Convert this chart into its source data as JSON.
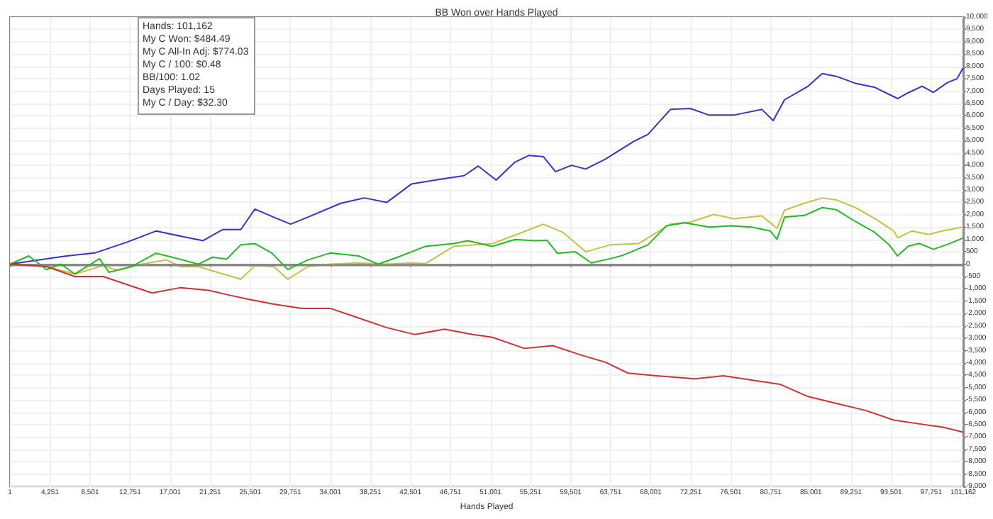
{
  "chart_data": {
    "type": "line",
    "title": "BB Won over Hands Played",
    "xlabel": "Hands Played",
    "annotations": [
      "Hands: 101,162",
      "My C Won: $484.49",
      "My C All-In Adj: $774.03",
      "My C / 100: $0.48",
      "BB/100: 1.02",
      "Days Played: 15",
      "My C / Day: $32.30"
    ],
    "xlim": [
      1,
      101162
    ],
    "xticks": [
      1,
      {
        "value": 4251,
        "label": "4,251"
      },
      {
        "value": 8501,
        "label": "8,501"
      },
      {
        "value": 12751,
        "label": "12,751"
      },
      {
        "value": 17001,
        "label": "17,001"
      },
      {
        "value": 21251,
        "label": "21,251"
      },
      {
        "value": 25501,
        "label": "25,501"
      },
      {
        "value": 29751,
        "label": "29,751"
      },
      {
        "value": 34001,
        "label": "34,001"
      },
      {
        "value": 38251,
        "label": "38,251"
      },
      {
        "value": 42501,
        "label": "42,501"
      },
      {
        "value": 46751,
        "label": "46,751"
      },
      {
        "value": 51001,
        "label": "51,001"
      },
      {
        "value": 55251,
        "label": "55,251"
      },
      {
        "value": 59501,
        "label": "59,501"
      },
      {
        "value": 63751,
        "label": "63,751"
      },
      {
        "value": 68001,
        "label": "68,001"
      },
      {
        "value": 72251,
        "label": "72,251"
      },
      {
        "value": 76501,
        "label": "76,501"
      },
      {
        "value": 80751,
        "label": "80,751"
      },
      {
        "value": 85001,
        "label": "85,001"
      },
      {
        "value": 89251,
        "label": "89,251"
      },
      {
        "value": 93501,
        "label": "93,501"
      },
      {
        "value": 97751,
        "label": "97,751"
      },
      {
        "value": 101162,
        "label": "101,162"
      }
    ],
    "ylim": [
      -9000,
      10000
    ],
    "yticks": [
      {
        "value": -9000,
        "label": "-9,000"
      },
      {
        "value": -8500,
        "label": "-8,500"
      },
      {
        "value": -8000,
        "label": "-8,000"
      },
      {
        "value": -7500,
        "label": "-7,500"
      },
      {
        "value": -7000,
        "label": "-7,000"
      },
      {
        "value": -6500,
        "label": "-6,500"
      },
      {
        "value": -6000,
        "label": "-6,000"
      },
      {
        "value": -5500,
        "label": "-5,500"
      },
      {
        "value": -5000,
        "label": "-5,000"
      },
      {
        "value": -4500,
        "label": "-4,500"
      },
      {
        "value": -4000,
        "label": "-4,000"
      },
      {
        "value": -3500,
        "label": "-3,500"
      },
      {
        "value": -3000,
        "label": "-3,000"
      },
      {
        "value": -2500,
        "label": "-2,500"
      },
      {
        "value": -2000,
        "label": "-2,000"
      },
      {
        "value": -1500,
        "label": "-1,500"
      },
      {
        "value": -1000,
        "label": "-1,000"
      },
      -500,
      0,
      500,
      {
        "value": 1000,
        "label": "1,000"
      },
      {
        "value": 1500,
        "label": "1,500"
      },
      {
        "value": 2000,
        "label": "2,000"
      },
      {
        "value": 2500,
        "label": "2,500"
      },
      {
        "value": 3000,
        "label": "3,000"
      },
      {
        "value": 3500,
        "label": "3,500"
      },
      {
        "value": 4000,
        "label": "4,000"
      },
      {
        "value": 4500,
        "label": "4,500"
      },
      {
        "value": 5000,
        "label": "5,000"
      },
      {
        "value": 5500,
        "label": "5,500"
      },
      {
        "value": 6000,
        "label": "6,000"
      },
      {
        "value": 6500,
        "label": "6,500"
      },
      {
        "value": 7000,
        "label": "7,000"
      },
      {
        "value": 7500,
        "label": "7,500"
      },
      {
        "value": 8000,
        "label": "8,000"
      },
      {
        "value": 8500,
        "label": "8,500"
      },
      {
        "value": 9000,
        "label": "9,000"
      },
      {
        "value": 9500,
        "label": "9,500"
      },
      {
        "value": 10000,
        "label": "10,000"
      }
    ],
    "grid": true,
    "marker": "none",
    "line_style": "solid",
    "ref_lines": [
      {
        "axis": "y",
        "value": 0,
        "color": "#888888"
      }
    ],
    "series": [
      {
        "color": "#3333cc",
        "x": [
          1,
          6000,
          9000,
          12500,
          15500,
          19000,
          20500,
          22600,
          24500,
          26000,
          28000,
          29800,
          31600,
          35100,
          37600,
          40000,
          42600,
          45100,
          48200,
          49700,
          51600,
          53600,
          55100,
          56600,
          57900,
          59600,
          61100,
          63200,
          66200,
          67700,
          70100,
          72200,
          74200,
          76800,
          79800,
          81000,
          82200,
          84700,
          86200,
          87700,
          89700,
          91800,
          94200,
          95300,
          96800,
          98000,
          99500,
          100500,
          101162
        ],
        "values": [
          0,
          330,
          450,
          900,
          1340,
          1060,
          950,
          1400,
          1400,
          2230,
          1900,
          1620,
          1900,
          2460,
          2680,
          2500,
          3240,
          3400,
          3580,
          3970,
          3400,
          4130,
          4400,
          4350,
          3740,
          4000,
          3850,
          4250,
          4970,
          5250,
          6260,
          6300,
          6030,
          6030,
          6260,
          5810,
          6650,
          7200,
          7710,
          7600,
          7320,
          7150,
          6700,
          6930,
          7200,
          6950,
          7350,
          7500,
          7950
        ]
      },
      {
        "color": "#c8c040",
        "x": [
          1,
          3900,
          6900,
          9900,
          11400,
          14000,
          16600,
          18100,
          20000,
          22000,
          24500,
          26000,
          28000,
          29500,
          31600,
          34000,
          37000,
          40000,
          42600,
          44100,
          47100,
          51200,
          53600,
          56600,
          58700,
          61100,
          63700,
          66700,
          70100,
          72200,
          74700,
          76800,
          79800,
          81400,
          82200,
          84300,
          86200,
          87700,
          89700,
          91800,
          93800,
          94200,
          95700,
          97500,
          99000,
          101162
        ],
        "values": [
          0,
          -100,
          -400,
          -60,
          -250,
          0,
          170,
          -100,
          -100,
          -330,
          -610,
          -60,
          -100,
          -610,
          -100,
          0,
          50,
          0,
          50,
          20,
          720,
          830,
          1170,
          1620,
          1280,
          500,
          780,
          830,
          1620,
          1700,
          2010,
          1840,
          1950,
          1450,
          2180,
          2460,
          2680,
          2600,
          2290,
          1840,
          1340,
          1060,
          1340,
          1200,
          1350,
          1500
        ]
      },
      {
        "color": "#22bb22",
        "x": [
          1,
          2000,
          3900,
          5400,
          6900,
          9500,
          10500,
          12900,
          15500,
          17000,
          20000,
          21500,
          23000,
          24500,
          26000,
          27800,
          29500,
          31600,
          34000,
          37000,
          39100,
          41500,
          44100,
          47100,
          48600,
          51200,
          53600,
          55700,
          57000,
          58100,
          60000,
          61700,
          63700,
          65000,
          67700,
          69700,
          71600,
          74200,
          76500,
          78700,
          80700,
          81400,
          82200,
          84300,
          86200,
          87700,
          89700,
          91800,
          93300,
          94200,
          95300,
          96500,
          98000,
          99500,
          101162
        ],
        "values": [
          0,
          330,
          -220,
          0,
          -400,
          220,
          -330,
          -100,
          440,
          300,
          0,
          280,
          200,
          780,
          830,
          450,
          -220,
          170,
          450,
          330,
          0,
          330,
          720,
          830,
          950,
          720,
          1000,
          950,
          960,
          440,
          500,
          50,
          220,
          350,
          780,
          1560,
          1670,
          1500,
          1550,
          1500,
          1340,
          1000,
          1900,
          1970,
          2290,
          2200,
          1730,
          1280,
          780,
          330,
          720,
          840,
          600,
          800,
          1060
        ]
      },
      {
        "color": "#cc3333",
        "x": [
          1,
          3900,
          6900,
          9900,
          12900,
          15100,
          18100,
          21100,
          23000,
          25000,
          28000,
          31000,
          34000,
          37000,
          40000,
          43000,
          46100,
          49100,
          51200,
          54600,
          57600,
          60700,
          63200,
          65600,
          68600,
          72700,
          75700,
          78700,
          81700,
          84700,
          87700,
          90800,
          93800,
          96800,
          99000,
          101162
        ],
        "values": [
          0,
          -100,
          -500,
          -500,
          -890,
          -1170,
          -950,
          -1060,
          -1230,
          -1400,
          -1620,
          -1790,
          -1790,
          -2180,
          -2570,
          -2850,
          -2630,
          -2850,
          -2960,
          -3410,
          -3300,
          -3690,
          -3970,
          -4410,
          -4520,
          -4640,
          -4520,
          -4690,
          -4860,
          -5360,
          -5640,
          -5920,
          -6310,
          -6480,
          -6600,
          -6800
        ]
      }
    ]
  }
}
